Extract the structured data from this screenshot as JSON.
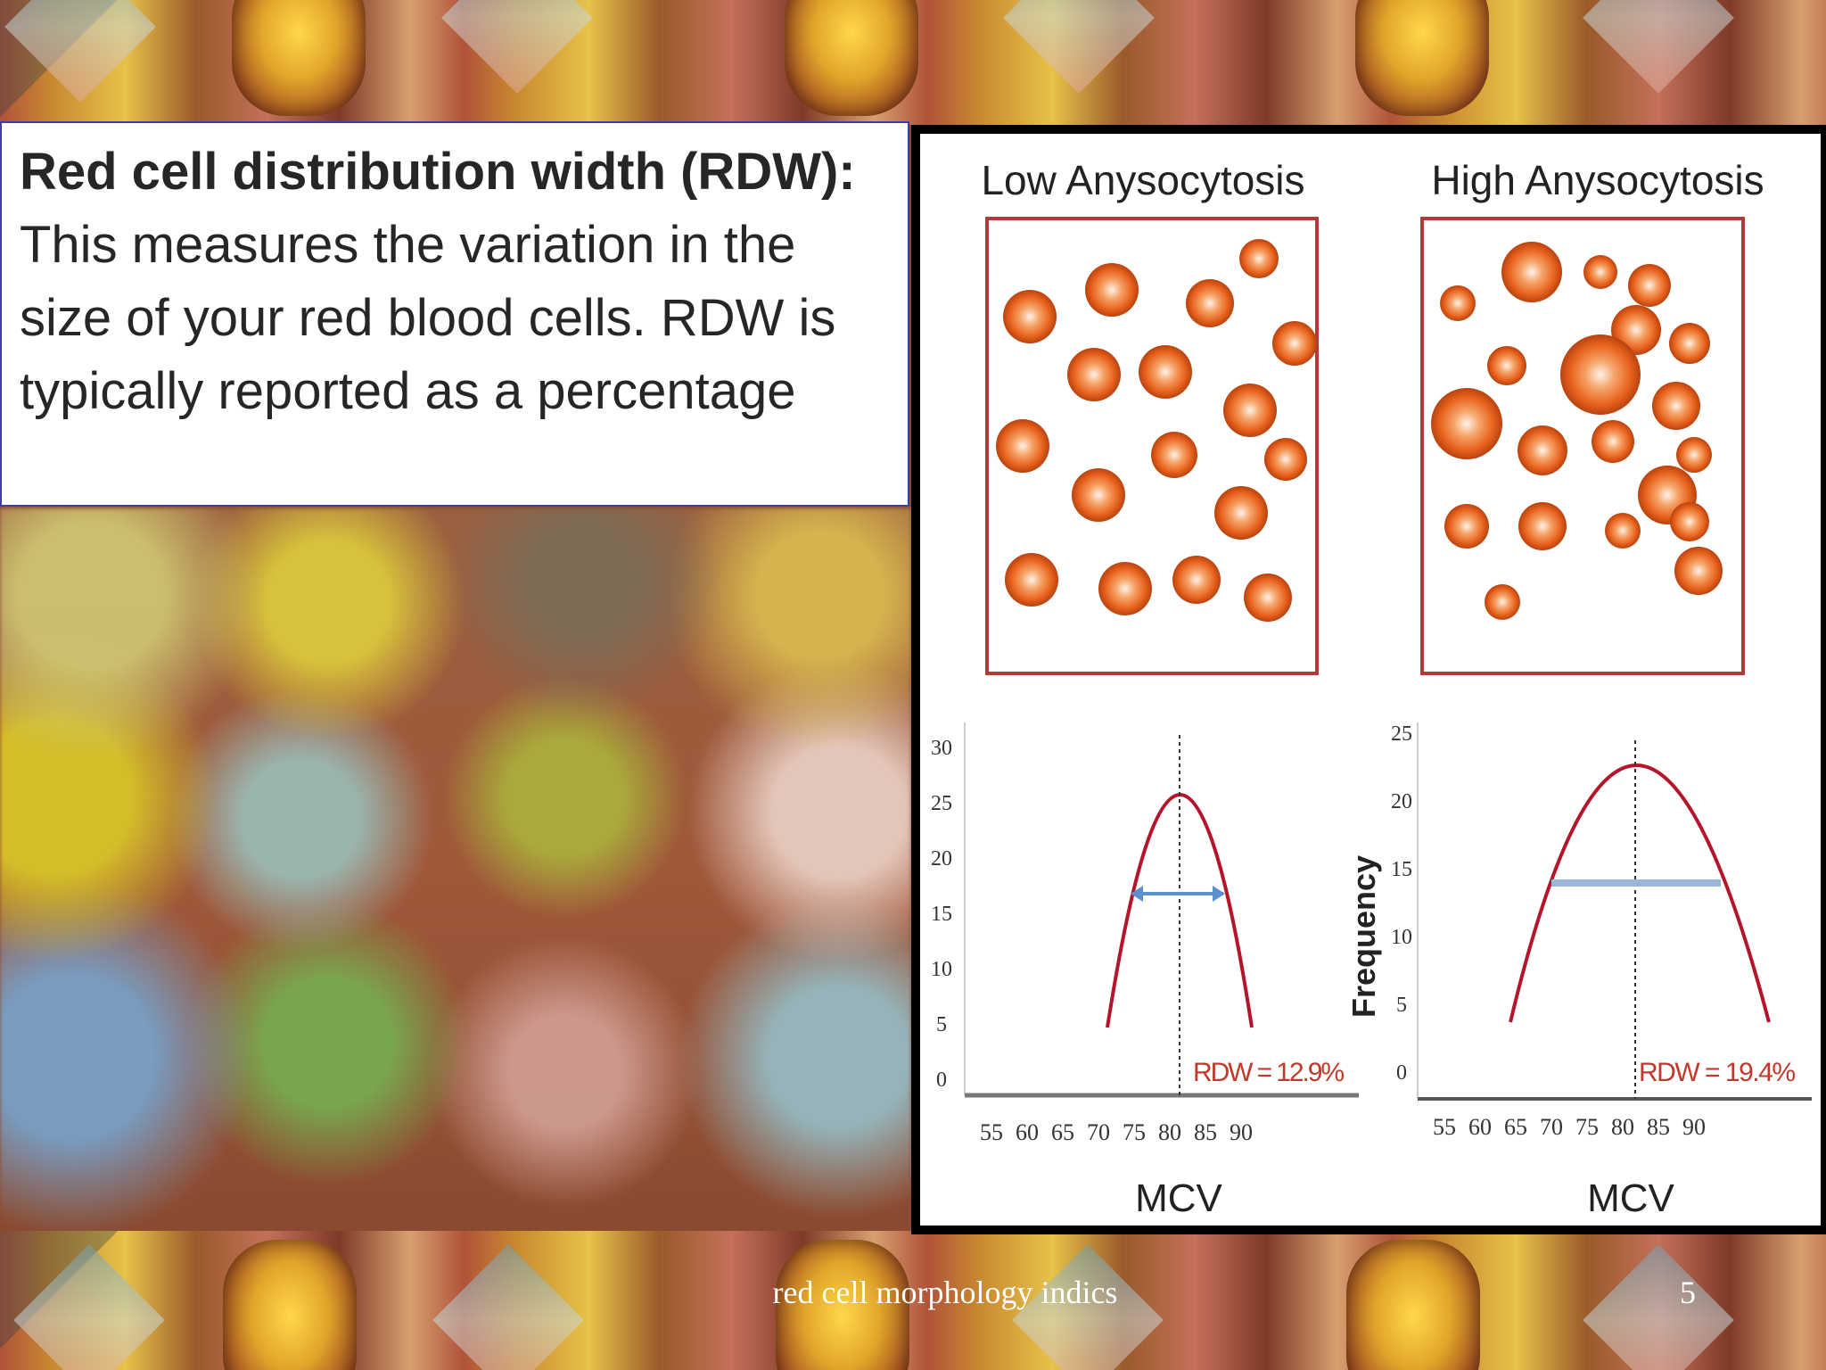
{
  "slide": {
    "heading_bold": "Red cell distribution width (RDW):",
    "body_text": " This measures the variation in the size of your red blood cells. RDW is typically reported as a percentage",
    "footer_title": "red cell morphology indics",
    "page_number": "5"
  },
  "figure": {
    "panels": [
      {
        "title": "Low Anysocytosis",
        "rdw_label": "RDW = 12.9%",
        "xlabel": "MCV",
        "ylabel": "",
        "x_ticks": [
          "55",
          "60",
          "65",
          "70",
          "75",
          "80",
          "85",
          "90"
        ],
        "y_ticks": [
          "0",
          "5",
          "10",
          "15",
          "20",
          "25",
          "30"
        ]
      },
      {
        "title": "High Anysocytosis",
        "rdw_label": "RDW = 19.4%",
        "xlabel": "MCV",
        "ylabel": "Frequency",
        "x_ticks": [
          "55",
          "60",
          "65",
          "70",
          "75",
          "80",
          "85",
          "90"
        ],
        "y_ticks": [
          "0",
          "5",
          "10",
          "15",
          "20",
          "25"
        ]
      }
    ],
    "colors": {
      "cell": "#e8621d",
      "frame": "#b23a3a",
      "curve": "#b5142b",
      "arrow": "#5a8fd0"
    }
  }
}
